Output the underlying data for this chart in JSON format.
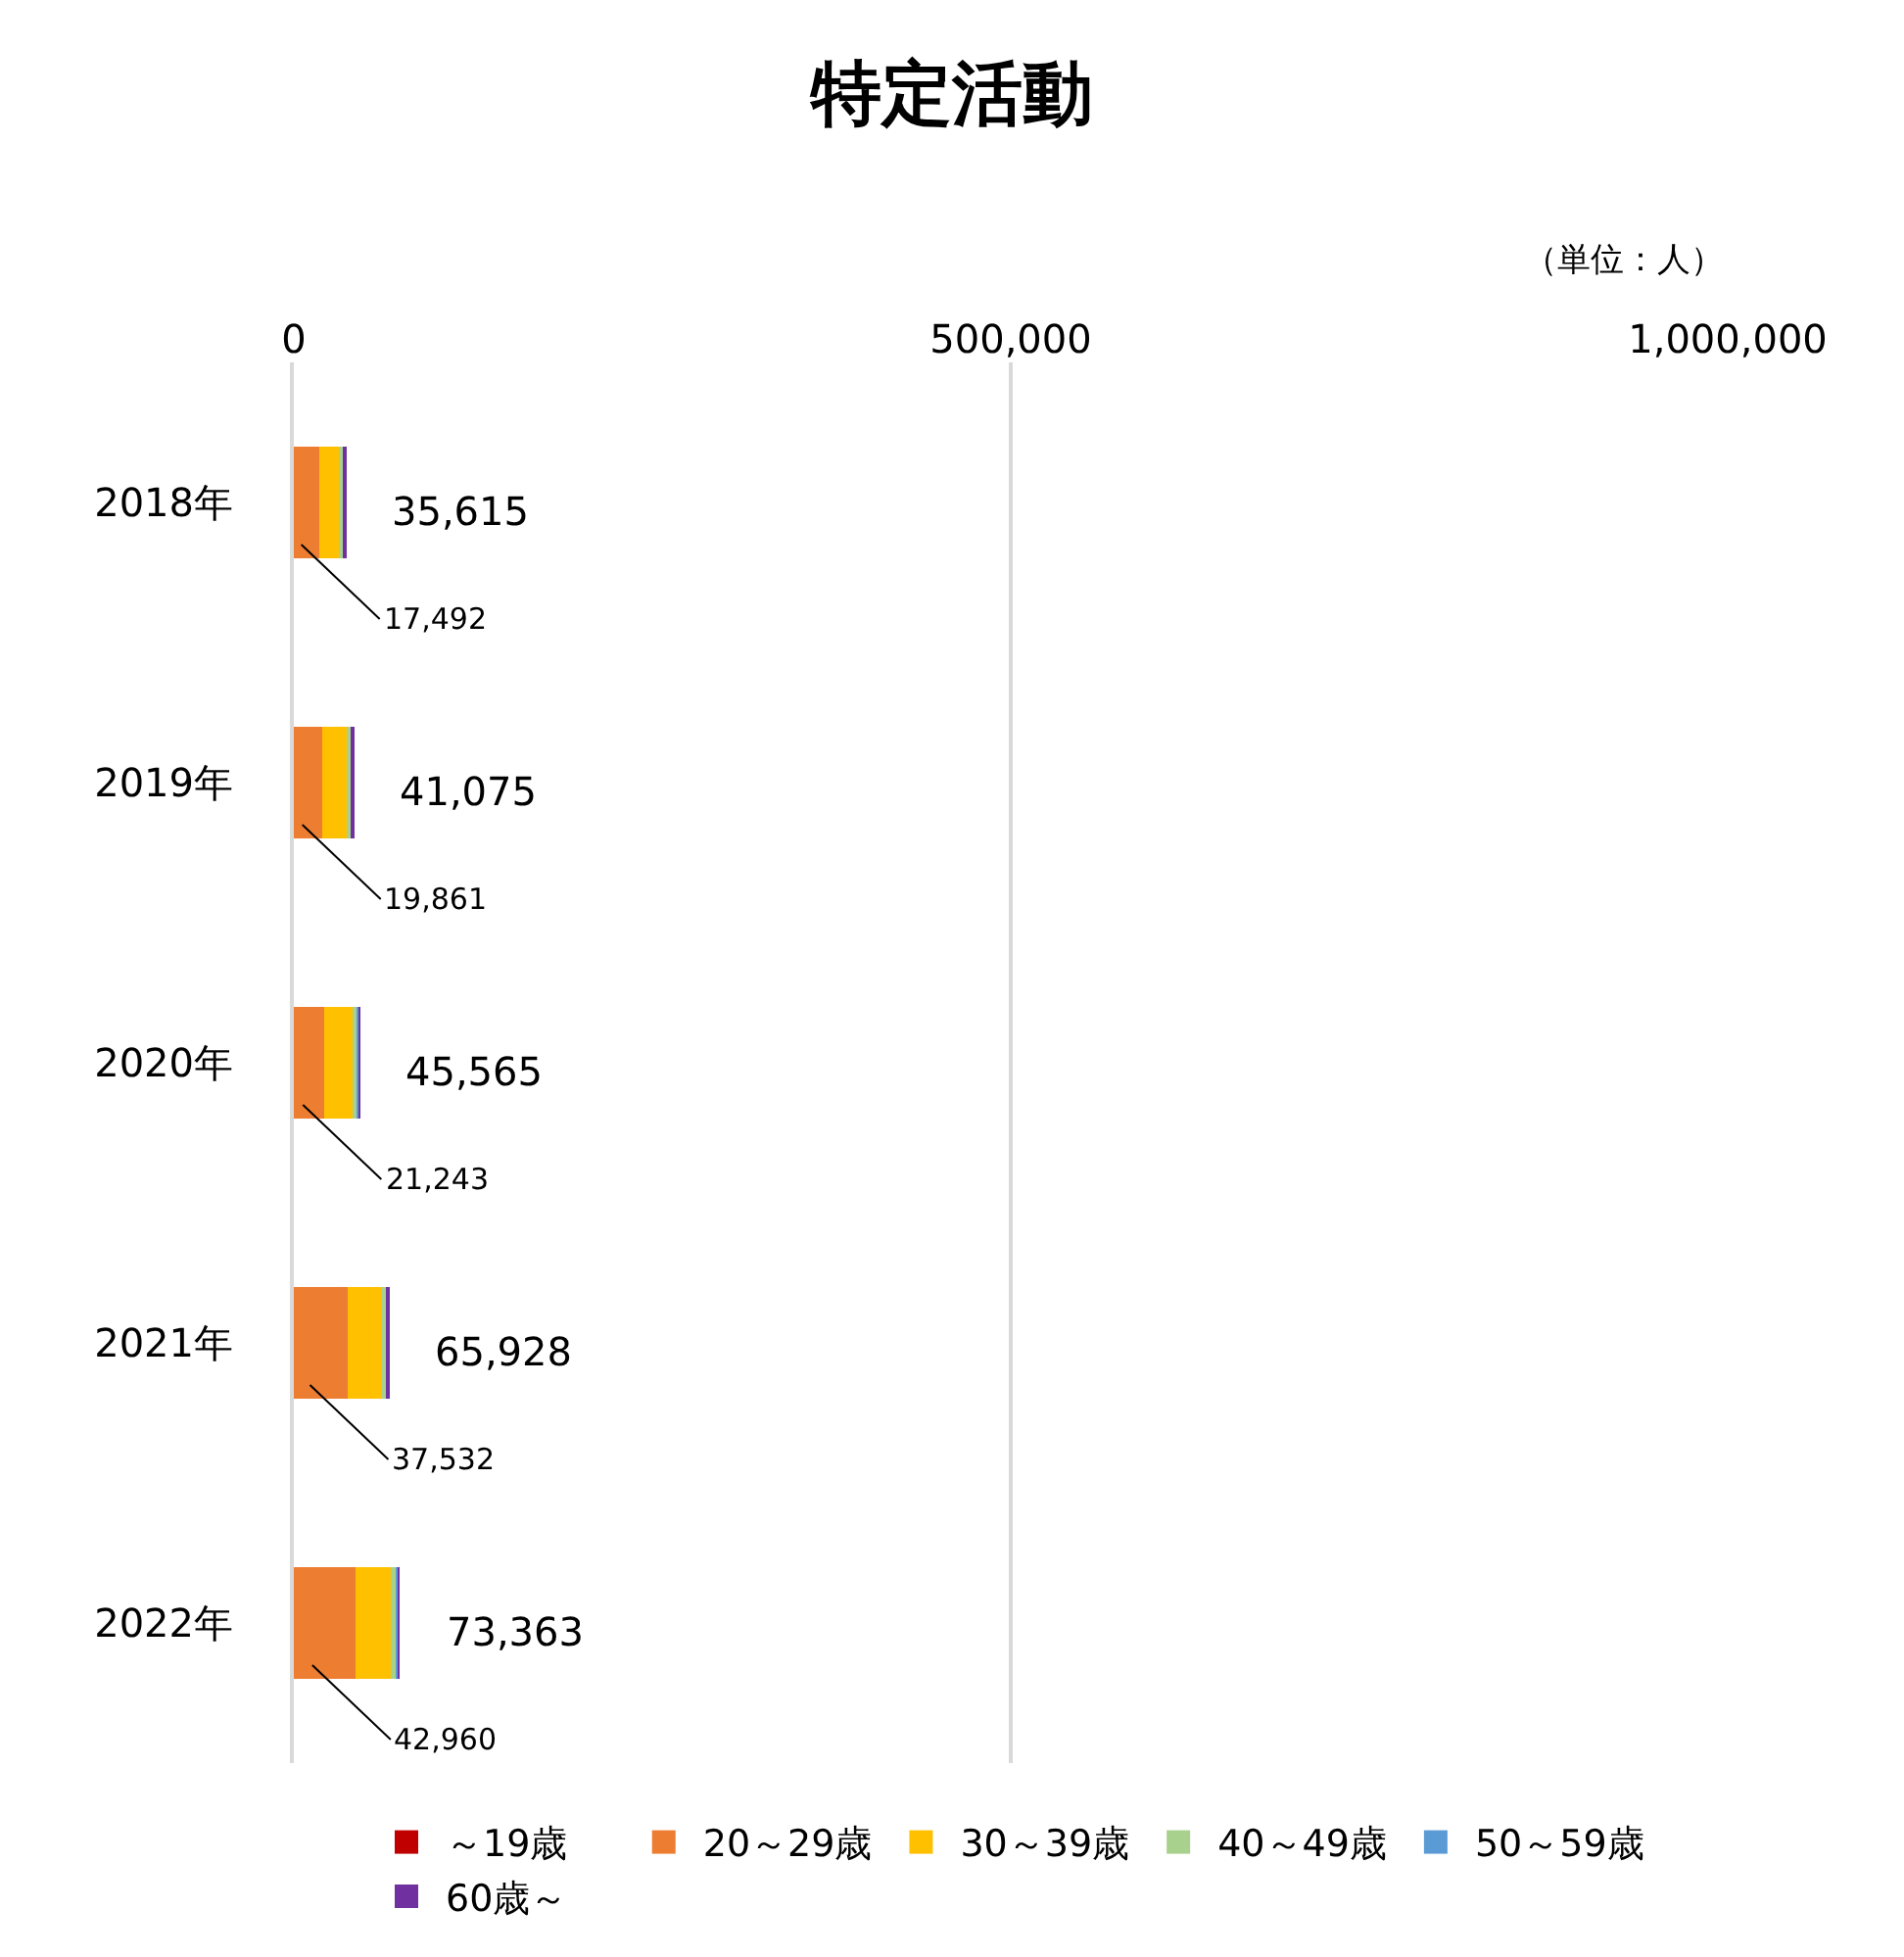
{
  "chart_data": {
    "type": "bar",
    "orientation": "horizontal",
    "stacked": true,
    "title": "特定活動",
    "annotations": [
      "（単位：人）"
    ],
    "categories": [
      "2018年",
      "2019年",
      "2020年",
      "2021年",
      "2022年"
    ],
    "series": [
      {
        "name": "～19歳",
        "color": "#c00000",
        "values": [
          null,
          null,
          null,
          null,
          null
        ]
      },
      {
        "name": "20～29歳",
        "color": "#ed7d31",
        "values": [
          17492,
          19861,
          21243,
          37532,
          42960
        ],
        "value_labels": [
          "17,492",
          "19,861",
          "21,243",
          "37,532",
          "42,960"
        ]
      },
      {
        "name": "30～39歳",
        "color": "#ffc000",
        "values": [
          14823,
          16814,
          19922,
          23896,
          24903
        ]
      },
      {
        "name": "40～49歳",
        "color": "#a9d18e",
        "values": [
          2000,
          3000,
          3000,
          3000,
          4000
        ]
      },
      {
        "name": "50～59歳",
        "color": "#5b9bd5",
        "values": [
          1000,
          1000,
          1000,
          1000,
          1000
        ]
      },
      {
        "name": "60歳～",
        "color": "#7030a0",
        "values": [
          300,
          400,
          400,
          500,
          500
        ]
      }
    ],
    "totals": [
      "35,615",
      "41,075",
      "45,565",
      "65,928",
      "73,363"
    ],
    "xlim": [
      0,
      1000000
    ],
    "xticks": [
      0,
      {
        "value": 500000,
        "label": "500,000"
      },
      {
        "value": 1000000,
        "label": "1,000,000"
      }
    ],
    "grid": "x",
    "legend": "bottom"
  }
}
